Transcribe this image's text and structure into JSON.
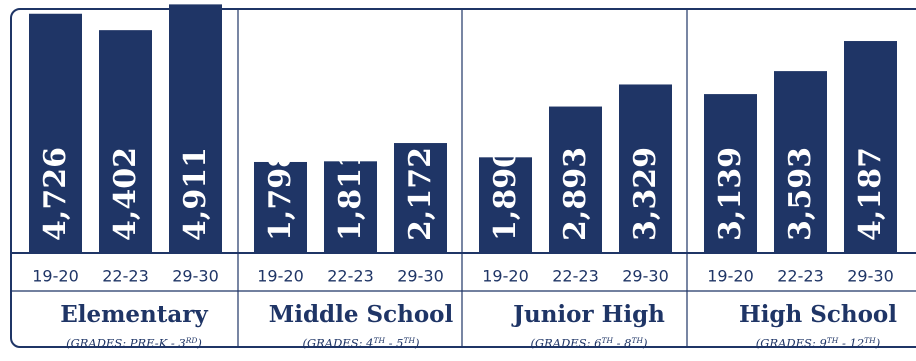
{
  "chart_data": {
    "type": "bar",
    "ylim": [
      0,
      4800
    ],
    "bar_color": "#1f3566",
    "categories": [
      "19-20",
      "22-23",
      "29-30"
    ],
    "groups": [
      {
        "name": "Elementary",
        "subtitle": [
          "(GRADES: PRE-K - 3",
          "RD",
          ")"
        ],
        "values": [
          4726,
          4402,
          4911
        ],
        "value_labels": [
          "4,726",
          "4,402",
          "4,911"
        ]
      },
      {
        "name": "Middle School",
        "subtitle": [
          "(GRADES: 4",
          "TH",
          " - 5",
          "TH",
          ")"
        ],
        "values": [
          1798,
          1811,
          2172
        ],
        "value_labels": [
          "1,798",
          "1,811",
          "2,172"
        ]
      },
      {
        "name": "Junior High",
        "subtitle": [
          "(GRADES: 6",
          "TH",
          " - 8",
          "TH",
          ")"
        ],
        "values": [
          1890,
          2893,
          3329
        ],
        "value_labels": [
          "1,890",
          "2,893",
          "3,329"
        ]
      },
      {
        "name": "High School",
        "subtitle": [
          "(GRADES: 9",
          "TH",
          " - 12",
          "TH",
          ")"
        ],
        "values": [
          3139,
          3593,
          4187
        ],
        "value_labels": [
          "3,139",
          "3,593",
          "4,187"
        ]
      }
    ]
  }
}
